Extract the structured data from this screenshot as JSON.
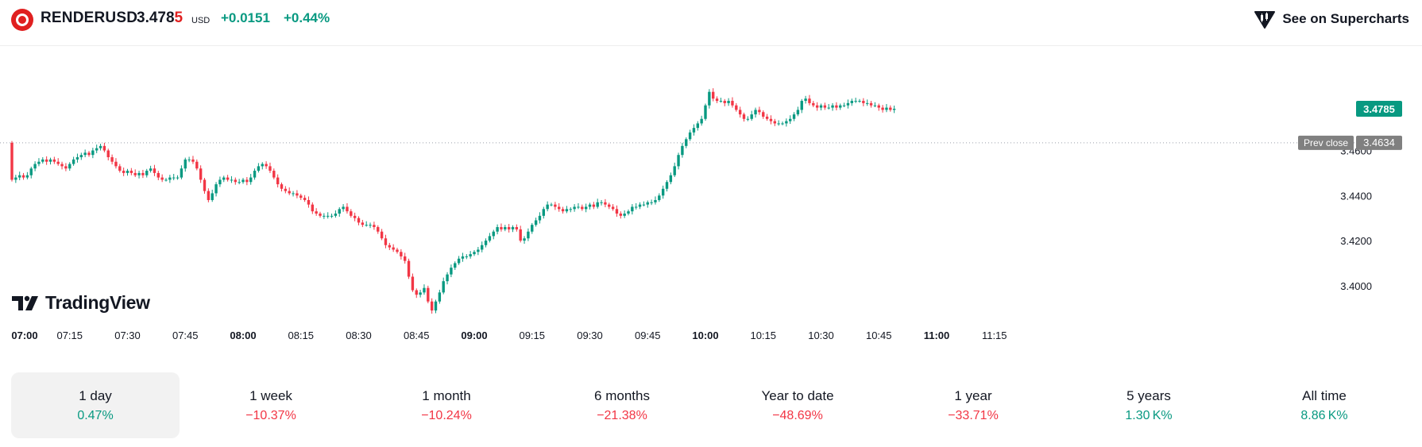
{
  "header": {
    "symbol": "RENDERUSD",
    "price_main": "3.478",
    "price_last_digit": "5",
    "currency": "USD",
    "change": "+0.0151",
    "change_pct": "+0.44%",
    "supercharts_label": "See on Supercharts"
  },
  "brand": {
    "name": "TradingView"
  },
  "colors": {
    "up": "#089981",
    "down": "#f23645",
    "accent": "#e02020"
  },
  "chart_data": {
    "type": "candlestick",
    "interval": "1 minute",
    "x_ticks": [
      {
        "label": "07:00",
        "bold": true,
        "i": 0
      },
      {
        "label": "07:15",
        "bold": false,
        "i": 15
      },
      {
        "label": "07:30",
        "bold": false,
        "i": 30
      },
      {
        "label": "07:45",
        "bold": false,
        "i": 45
      },
      {
        "label": "08:00",
        "bold": true,
        "i": 60
      },
      {
        "label": "08:15",
        "bold": false,
        "i": 75
      },
      {
        "label": "08:30",
        "bold": false,
        "i": 90
      },
      {
        "label": "08:45",
        "bold": false,
        "i": 105
      },
      {
        "label": "09:00",
        "bold": true,
        "i": 120
      },
      {
        "label": "09:15",
        "bold": false,
        "i": 135
      },
      {
        "label": "09:30",
        "bold": false,
        "i": 150
      },
      {
        "label": "09:45",
        "bold": false,
        "i": 165
      },
      {
        "label": "10:00",
        "bold": true,
        "i": 180
      },
      {
        "label": "10:15",
        "bold": false,
        "i": 195
      },
      {
        "label": "10:30",
        "bold": false,
        "i": 210
      },
      {
        "label": "10:45",
        "bold": false,
        "i": 225
      },
      {
        "label": "11:00",
        "bold": true,
        "i": 240
      },
      {
        "label": "11:15",
        "bold": false,
        "i": 255
      }
    ],
    "y_ticks": [
      "3.4000",
      "3.4200",
      "3.4400",
      "3.4600"
    ],
    "ylim": [
      3.3848,
      3.5028
    ],
    "last_price": {
      "value": 3.4785,
      "label": "3.4785"
    },
    "prev_close": {
      "value": 3.4634,
      "label": "3.4634",
      "caption": "Prev close"
    },
    "closes": [
      3.447,
      3.448,
      3.449,
      3.448,
      3.449,
      3.452,
      3.454,
      3.455,
      3.456,
      3.455,
      3.456,
      3.455,
      3.454,
      3.453,
      3.452,
      3.454,
      3.456,
      3.457,
      3.458,
      3.459,
      3.458,
      3.46,
      3.461,
      3.462,
      3.46,
      3.457,
      3.455,
      3.453,
      3.451,
      3.45,
      3.451,
      3.45,
      3.449,
      3.45,
      3.449,
      3.451,
      3.452,
      3.45,
      3.448,
      3.447,
      3.447,
      3.448,
      3.448,
      3.448,
      3.452,
      3.456,
      3.456,
      3.455,
      3.452,
      3.447,
      3.442,
      3.438,
      3.441,
      3.445,
      3.447,
      3.448,
      3.447,
      3.447,
      3.446,
      3.446,
      3.447,
      3.446,
      3.448,
      3.451,
      3.453,
      3.454,
      3.453,
      3.451,
      3.448,
      3.445,
      3.443,
      3.442,
      3.441,
      3.441,
      3.44,
      3.439,
      3.438,
      3.436,
      3.433,
      3.432,
      3.431,
      3.431,
      3.431,
      3.431,
      3.432,
      3.434,
      3.435,
      3.433,
      3.431,
      3.43,
      3.428,
      3.427,
      3.427,
      3.427,
      3.426,
      3.424,
      3.421,
      3.418,
      3.417,
      3.416,
      3.415,
      3.413,
      3.411,
      3.404,
      3.398,
      3.396,
      3.397,
      3.399,
      3.393,
      3.389,
      3.393,
      3.397,
      3.402,
      3.405,
      3.408,
      3.41,
      3.412,
      3.413,
      3.413,
      3.414,
      3.415,
      3.416,
      3.418,
      3.42,
      3.422,
      3.424,
      3.426,
      3.425,
      3.426,
      3.425,
      3.426,
      3.425,
      3.42,
      3.421,
      3.424,
      3.427,
      3.429,
      3.431,
      3.434,
      3.436,
      3.436,
      3.435,
      3.434,
      3.433,
      3.434,
      3.434,
      3.435,
      3.435,
      3.434,
      3.435,
      3.436,
      3.435,
      3.437,
      3.437,
      3.436,
      3.435,
      3.434,
      3.432,
      3.431,
      3.432,
      3.433,
      3.435,
      3.435,
      3.436,
      3.436,
      3.437,
      3.437,
      3.438,
      3.44,
      3.443,
      3.446,
      3.449,
      3.453,
      3.458,
      3.462,
      3.465,
      3.468,
      3.47,
      3.472,
      3.474,
      3.48,
      3.486,
      3.483,
      3.482,
      3.482,
      3.481,
      3.482,
      3.48,
      3.478,
      3.476,
      3.474,
      3.474,
      3.476,
      3.478,
      3.477,
      3.475,
      3.474,
      3.473,
      3.472,
      3.472,
      3.472,
      3.473,
      3.474,
      3.476,
      3.478,
      3.482,
      3.483,
      3.481,
      3.48,
      3.479,
      3.48,
      3.479,
      3.479,
      3.48,
      3.479,
      3.48,
      3.48,
      3.481,
      3.482,
      3.482,
      3.482,
      3.481,
      3.481,
      3.48,
      3.48,
      3.479,
      3.478,
      3.479,
      3.478,
      3.4785
    ]
  },
  "periods": [
    {
      "label": "1 day",
      "value": "0.47%",
      "trend": "up",
      "active": true
    },
    {
      "label": "1 week",
      "value": "−10.37%",
      "trend": "down",
      "active": false
    },
    {
      "label": "1 month",
      "value": "−10.24%",
      "trend": "down",
      "active": false
    },
    {
      "label": "6 months",
      "value": "−21.38%",
      "trend": "down",
      "active": false
    },
    {
      "label": "Year to date",
      "value": "−48.69%",
      "trend": "down",
      "active": false
    },
    {
      "label": "1 year",
      "value": "−33.71%",
      "trend": "down",
      "active": false
    },
    {
      "label": "5 years",
      "value": "1.30 K%",
      "trend": "up",
      "active": false
    },
    {
      "label": "All time",
      "value": "8.86 K%",
      "trend": "up",
      "active": false
    }
  ]
}
